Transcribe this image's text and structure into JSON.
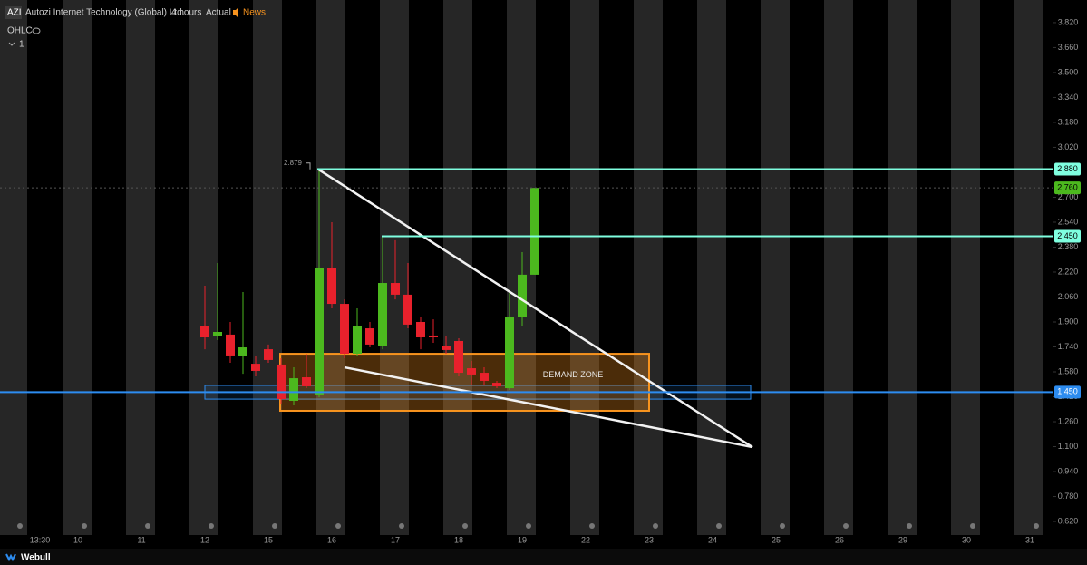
{
  "chart_data": {
    "type": "candlestick",
    "symbol": "AZI",
    "title": "Autozi Internet Technology (Global) Ltd.",
    "interval": "4 hours",
    "mode": "Actual",
    "news": "News",
    "indicator": "OHLC",
    "pane_label": "1",
    "brand": "Webull",
    "xticks": [
      "13:30",
      "10",
      "11",
      "12",
      "15",
      "16",
      "17",
      "18",
      "19",
      "22",
      "23",
      "24",
      "25",
      "26",
      "29",
      "30",
      "31"
    ],
    "open": [
      1.871,
      1.807,
      1.819,
      1.679,
      1.632,
      1.725,
      1.627,
      1.394,
      1.545,
      1.435,
      2.249,
      2.016,
      1.696,
      1.859,
      1.743,
      2.15,
      2.075,
      1.9,
      1.813,
      1.743,
      1.778,
      1.603,
      1.574,
      1.51,
      1.475,
      1.929,
      2.203
    ],
    "high": [
      2.133,
      2.278,
      1.9,
      2.092,
      1.679,
      1.755,
      1.667,
      1.609,
      1.696,
      2.879,
      2.54,
      2.045,
      1.987,
      1.9,
      2.453,
      2.424,
      2.278,
      1.929,
      1.917,
      1.813,
      1.795,
      1.65,
      1.609,
      1.522,
      2.092,
      2.348,
      2.76
    ],
    "low": [
      1.725,
      1.784,
      1.638,
      1.568,
      1.551,
      1.638,
      1.376,
      1.365,
      1.475,
      1.417,
      1.987,
      1.667,
      1.685,
      1.737,
      1.725,
      2.045,
      1.859,
      1.725,
      1.766,
      1.696,
      1.551,
      1.493,
      1.493,
      1.475,
      1.464,
      1.871,
      2.203
    ],
    "close": [
      1.801,
      1.836,
      1.685,
      1.737,
      1.586,
      1.656,
      1.405,
      1.539,
      1.487,
      2.249,
      2.016,
      1.696,
      1.871,
      1.755,
      2.15,
      2.075,
      1.883,
      1.801,
      1.801,
      1.72,
      1.574,
      1.563,
      1.522,
      1.487,
      1.929,
      2.203,
      2.76
    ],
    "up_color": "#4cb81e",
    "down_color": "#e8212c",
    "ylim": [
      0.533,
      3.965
    ],
    "yticks": [
      {
        "value": 3.82,
        "label": "3.820"
      },
      {
        "value": 3.66,
        "label": "3.660"
      },
      {
        "value": 3.5,
        "label": "3.500"
      },
      {
        "value": 3.34,
        "label": "3.340"
      },
      {
        "value": 3.18,
        "label": "3.180"
      },
      {
        "value": 3.02,
        "label": "3.020"
      },
      {
        "value": 2.86,
        "label": "2.860"
      },
      {
        "value": 2.7,
        "label": "2.700"
      },
      {
        "value": 2.54,
        "label": "2.540"
      },
      {
        "value": 2.38,
        "label": "2.380"
      },
      {
        "value": 2.22,
        "label": "2.220"
      },
      {
        "value": 2.06,
        "label": "2.060"
      },
      {
        "value": 1.9,
        "label": "1.900"
      },
      {
        "value": 1.74,
        "label": "1.740"
      },
      {
        "value": 1.58,
        "label": "1.580"
      },
      {
        "value": 1.42,
        "label": "1.420"
      },
      {
        "value": 1.26,
        "label": "1.260"
      },
      {
        "value": 1.1,
        "label": "1.100"
      },
      {
        "value": 0.94,
        "label": "0.940"
      },
      {
        "value": 0.78,
        "label": "0.780"
      },
      {
        "value": 0.62,
        "label": "0.620"
      }
    ],
    "high_label": 2.879,
    "levels": [
      {
        "value": 2.88,
        "label": "2.880",
        "color": "#7fffe0"
      },
      {
        "value": 2.76,
        "label": "2.760",
        "color": "#4cb81e"
      },
      {
        "value": 2.45,
        "label": "2.450",
        "color": "#7fffe0"
      },
      {
        "value": 1.45,
        "label": "1.450",
        "color": "#2d8cf0"
      }
    ],
    "demand_zone": {
      "label": "DEMAND ZONE",
      "top": 1.696,
      "bottom": 1.33,
      "color": "#f7931e"
    },
    "support_band": {
      "top": 1.493,
      "bottom": 1.405,
      "color": "#2d8cf0"
    },
    "trendlines": [
      {
        "y": [
          2.879,
          1.097
        ]
      },
      {
        "y": [
          1.609,
          1.097
        ]
      }
    ]
  }
}
